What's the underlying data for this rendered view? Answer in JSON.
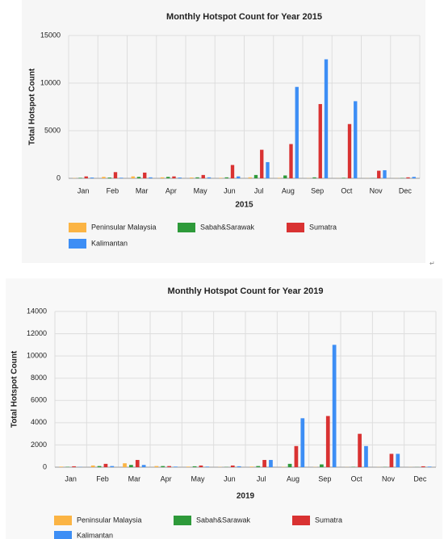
{
  "chart_data": [
    {
      "type": "bar",
      "title": "Monthly Hotspot Count for Year 2015",
      "x_label": "2015",
      "y_label": "Total Hotspot Count",
      "categories": [
        "Jan",
        "Feb",
        "Mar",
        "Apr",
        "May",
        "Jun",
        "Jul",
        "Aug",
        "Sep",
        "Oct",
        "Nov",
        "Dec"
      ],
      "series": [
        {
          "name": "Peninsular Malaysia",
          "color": "#fbb444",
          "values": [
            30,
            150,
            200,
            100,
            80,
            50,
            100,
            50,
            20,
            10,
            10,
            10
          ]
        },
        {
          "name": "Sabah&Sarawak",
          "color": "#2e9a3a",
          "values": [
            50,
            80,
            150,
            150,
            100,
            100,
            350,
            300,
            100,
            50,
            20,
            30
          ]
        },
        {
          "name": "Sumatra",
          "color": "#d93232",
          "values": [
            200,
            650,
            600,
            200,
            350,
            1400,
            3000,
            3600,
            7800,
            5700,
            800,
            100
          ]
        },
        {
          "name": "Kalimantan",
          "color": "#3d8ef5",
          "values": [
            80,
            60,
            100,
            80,
            100,
            200,
            1700,
            9600,
            12500,
            8100,
            850,
            150
          ]
        }
      ],
      "ylim": [
        0,
        15000
      ],
      "yticks": [
        0,
        5000,
        10000,
        15000
      ],
      "grid": true
    },
    {
      "type": "bar",
      "title": "Monthly Hotspot Count for Year 2019",
      "x_label": "2019",
      "y_label": "Total Hotspot Count",
      "categories": [
        "Jan",
        "Feb",
        "Mar",
        "Apr",
        "May",
        "Jun",
        "Jul",
        "Aug",
        "Sep",
        "Oct",
        "Nov",
        "Dec"
      ],
      "series": [
        {
          "name": "Peninsular Malaysia",
          "color": "#fbb444",
          "values": [
            50,
            150,
            350,
            100,
            50,
            20,
            50,
            30,
            20,
            10,
            10,
            10
          ]
        },
        {
          "name": "Sabah&Sarawak",
          "color": "#2e9a3a",
          "values": [
            30,
            100,
            200,
            100,
            80,
            20,
            100,
            300,
            250,
            30,
            20,
            10
          ]
        },
        {
          "name": "Sumatra",
          "color": "#d93232",
          "values": [
            80,
            300,
            650,
            100,
            150,
            150,
            650,
            1900,
            4600,
            3000,
            1200,
            80
          ]
        },
        {
          "name": "Kalimantan",
          "color": "#3d8ef5",
          "values": [
            20,
            100,
            200,
            50,
            50,
            80,
            650,
            4400,
            11000,
            1900,
            1200,
            50
          ]
        }
      ],
      "ylim": [
        0,
        14000
      ],
      "yticks": [
        0,
        2000,
        4000,
        6000,
        8000,
        10000,
        12000,
        14000
      ],
      "grid": true
    }
  ],
  "mark": "↵"
}
